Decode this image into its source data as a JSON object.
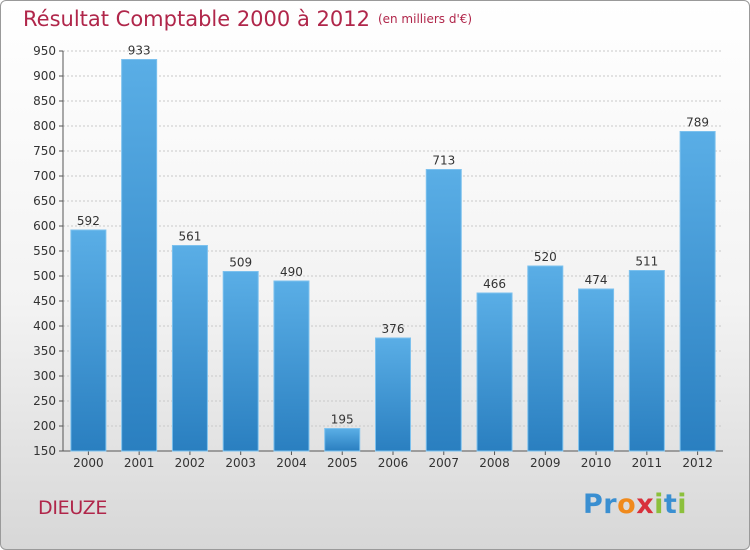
{
  "chart_data": {
    "type": "bar",
    "title": "Résultat Comptable 2000 à 2012",
    "subtitle": "(en milliers d'€)",
    "categories": [
      "2000",
      "2001",
      "2002",
      "2003",
      "2004",
      "2005",
      "2006",
      "2007",
      "2008",
      "2009",
      "2010",
      "2011",
      "2012"
    ],
    "values": [
      592,
      933,
      561,
      509,
      490,
      195,
      376,
      713,
      466,
      520,
      474,
      511,
      789
    ],
    "ylim": [
      150,
      950
    ],
    "yticks": [
      150,
      200,
      250,
      300,
      350,
      400,
      450,
      500,
      550,
      600,
      650,
      700,
      750,
      800,
      850,
      900,
      950
    ],
    "grid": true,
    "bar_color_top": "#5aaee6",
    "bar_color_bottom": "#2a7fc0"
  },
  "footer": {
    "city": "DIEUZE",
    "brand_letters": [
      {
        "char": "P",
        "color": "#3a8fd1"
      },
      {
        "char": "r",
        "color": "#3a8fd1"
      },
      {
        "char": "o",
        "color": "#f08a1c"
      },
      {
        "char": "x",
        "color": "#d8303b"
      },
      {
        "char": "i",
        "color": "#8cc03c"
      },
      {
        "char": "t",
        "color": "#3a8fd1"
      },
      {
        "char": "i",
        "color": "#8cc03c"
      }
    ]
  }
}
